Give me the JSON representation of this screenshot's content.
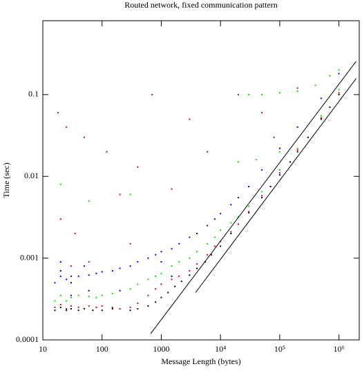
{
  "chart_data": {
    "type": "scatter",
    "title": "Routed network, fixed communication pattern",
    "x_label": "Message Length (bytes)",
    "y_label": "Time (sec)",
    "xscale": "log",
    "yscale": "log",
    "xlim": [
      10,
      2200000
    ],
    "ylim": [
      0.0001,
      0.8
    ],
    "xticks": [
      10,
      100,
      1000,
      {
        "value": 10000,
        "label": "10⁴"
      },
      {
        "value": 100000,
        "label": "10⁵"
      },
      {
        "value": 1000000,
        "label": "10⁶"
      }
    ],
    "yticks": [
      0.0001,
      0.001,
      0.01,
      0.1
    ],
    "series": [
      {
        "color": "#000000",
        "marker": "dot",
        "x": [
          16,
          20,
          25,
          30,
          40,
          50,
          70,
          100,
          150,
          200,
          300,
          400,
          600,
          800,
          1000,
          1300,
          1700,
          2200,
          3000,
          4000,
          5500,
          7000,
          10000,
          15000,
          20000,
          30000,
          50000,
          70000,
          100000,
          150000,
          200000,
          300000,
          500000,
          700000,
          1000000,
          20,
          30,
          60,
          1500
        ],
        "values": [
          0.00023,
          0.00025,
          0.00023,
          0.00024,
          0.00023,
          0.00024,
          0.00023,
          0.00023,
          0.00024,
          0.00024,
          0.00023,
          0.00024,
          0.00026,
          0.00029,
          0.00033,
          0.00038,
          0.00045,
          0.00052,
          0.00062,
          0.00075,
          0.0009,
          0.0011,
          0.0014,
          0.002,
          0.0026,
          0.0036,
          0.0055,
          0.0075,
          0.0104,
          0.015,
          0.02,
          0.03,
          0.05,
          0.07,
          0.1,
          0.0007,
          0.0005,
          0.0004,
          0.0006
        ]
      },
      {
        "color": "#e00000",
        "marker": "dot",
        "x": [
          16,
          20,
          25,
          30,
          40,
          60,
          80,
          100,
          150,
          200,
          300,
          400,
          600,
          800,
          1000,
          1500,
          2000,
          3000,
          4000,
          6000,
          8000,
          10000,
          15000,
          20000,
          30000,
          50000,
          100000,
          200000,
          500000,
          1000000,
          18,
          25,
          50,
          120,
          200,
          400,
          700,
          1500,
          3000,
          6000,
          20000,
          50000,
          80000,
          200000,
          20,
          35,
          300,
          30,
          60
        ],
        "values": [
          0.00025,
          0.00027,
          0.00024,
          0.00026,
          0.00025,
          0.00026,
          0.00025,
          0.00026,
          0.00025,
          0.00024,
          0.00025,
          0.00028,
          0.00035,
          0.00042,
          0.00048,
          0.00055,
          0.0006,
          0.0007,
          0.00085,
          0.0011,
          0.0014,
          0.0016,
          0.0021,
          0.0026,
          0.0037,
          0.0058,
          0.011,
          0.021,
          0.052,
          0.105,
          0.06,
          0.04,
          0.03,
          0.02,
          0.006,
          0.013,
          0.1,
          0.007,
          0.05,
          0.02,
          0.1,
          0.06,
          0.03,
          0.12,
          0.003,
          0.002,
          0.0015,
          0.0008,
          0.0009
        ]
      },
      {
        "color": "#00e000",
        "marker": "dot",
        "x": [
          16,
          20,
          25,
          30,
          40,
          60,
          80,
          100,
          150,
          200,
          300,
          400,
          600,
          800,
          1000,
          1500,
          2000,
          3000,
          4000,
          6000,
          8000,
          10000,
          15000,
          20000,
          30000,
          50000,
          100000,
          200000,
          500000,
          1000000,
          30000,
          50000,
          100000,
          200000,
          400000,
          700000,
          1000000,
          20000,
          40000,
          20,
          60,
          300,
          100000
        ],
        "values": [
          0.0003,
          0.00035,
          0.0003,
          0.00033,
          0.00035,
          0.00034,
          0.00033,
          0.00035,
          0.00037,
          0.0004,
          0.00042,
          0.00048,
          0.00055,
          0.0006,
          0.00065,
          0.0008,
          0.0009,
          0.001,
          0.0012,
          0.0015,
          0.0018,
          0.0022,
          0.0027,
          0.0032,
          0.0043,
          0.0065,
          0.012,
          0.022,
          0.055,
          0.115,
          0.1,
          0.1,
          0.105,
          0.11,
          0.13,
          0.17,
          0.2,
          0.015,
          0.016,
          0.008,
          0.005,
          0.006,
          0.02
        ]
      },
      {
        "color": "#0000ff",
        "marker": "dot",
        "x": [
          16,
          20,
          25,
          30,
          40,
          60,
          80,
          100,
          150,
          200,
          300,
          400,
          600,
          800,
          1000,
          1500,
          2000,
          3000,
          4000,
          6000,
          8000,
          10000,
          15000,
          20000,
          30000,
          50000,
          100000,
          200000,
          500000,
          1000000,
          20,
          50,
          30,
          200,
          1000
        ],
        "values": [
          0.0005,
          0.0006,
          0.00055,
          0.0006,
          0.0006,
          0.00062,
          0.00065,
          0.00068,
          0.0007,
          0.00075,
          0.0008,
          0.0009,
          0.001,
          0.0011,
          0.0012,
          0.0013,
          0.0015,
          0.0018,
          0.002,
          0.0025,
          0.003,
          0.0035,
          0.0045,
          0.0055,
          0.0075,
          0.012,
          0.022,
          0.04,
          0.09,
          0.18,
          0.0009,
          0.0008,
          0.00035,
          0.0004,
          0.0009
        ]
      },
      {
        "color": "#000000",
        "marker": "line",
        "x": [
          660,
          1950000
        ],
        "values": [
          0.000119,
          0.255
        ]
      },
      {
        "color": "#000000",
        "marker": "line",
        "x": [
          3800,
          1950000
        ],
        "values": [
          0.00038,
          0.157
        ]
      }
    ]
  }
}
